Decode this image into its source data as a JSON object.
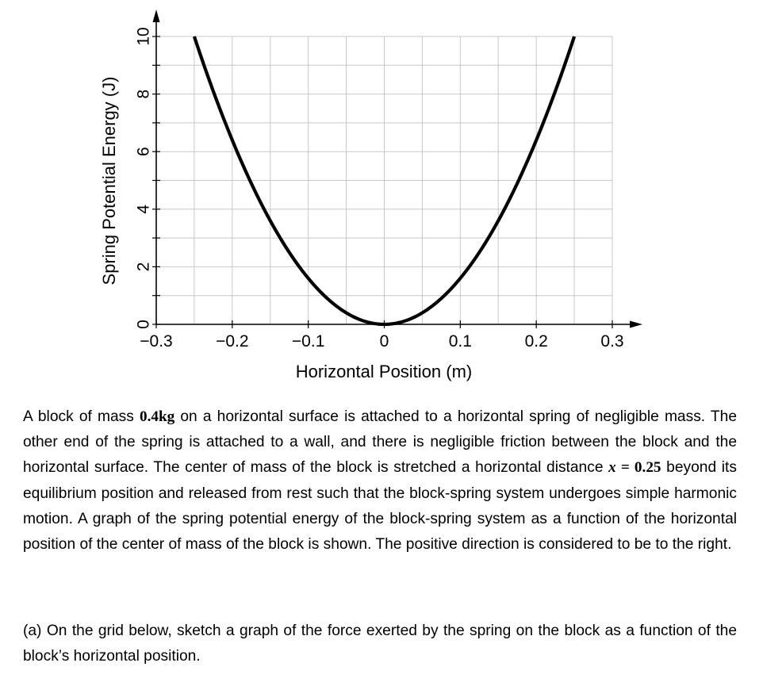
{
  "chart_data": {
    "type": "line",
    "xlabel": "Horizontal Position (m)",
    "ylabel": "Spring Potential Energy (J)",
    "xlim": [
      -0.3,
      0.3
    ],
    "ylim": [
      0,
      10
    ],
    "x_ticks": [
      -0.3,
      -0.2,
      -0.1,
      0,
      0.1,
      0.2,
      0.3
    ],
    "x_tick_labels": [
      "−0.3",
      "−0.2",
      "−0.1",
      "0",
      "0.1",
      "0.2",
      "0.3"
    ],
    "y_ticks": [
      0,
      2,
      4,
      6,
      8,
      10
    ],
    "y_tick_labels": [
      "0",
      "2",
      "4",
      "6",
      "8",
      "10"
    ],
    "grid": true,
    "series": [
      {
        "x": [
          -0.25,
          -0.2,
          -0.15,
          -0.1,
          -0.05,
          0,
          0.05,
          0.1,
          0.15,
          0.2,
          0.25
        ],
        "y": [
          10,
          6.4,
          3.6,
          1.6,
          0.4,
          0,
          0.4,
          1.6,
          3.6,
          6.4,
          10
        ]
      }
    ]
  },
  "problem": {
    "p1_a": "A block of mass ",
    "mass": "0.4kg",
    "p1_b": " on a horizontal surface is attached to a horizontal spring of negligible mass. The other end of the spring is attached to a wall, and there is negligible friction between the block and the horizontal surface. The center of mass of the block is stretched a horizontal distance ",
    "x_var": "x",
    "x_eq": " = 0.25",
    "p1_c": " beyond its equilibrium position and released from rest such that the block-spring system undergoes simple harmonic motion. A graph of the spring potential energy of the block-spring system as a function of the horizontal position of the center of mass of the block is shown. The positive direction is considered to be to the right.",
    "p2": "(a) On the grid below, sketch a graph of the force exerted by the spring on the block as a function of the block’s horizontal position."
  }
}
